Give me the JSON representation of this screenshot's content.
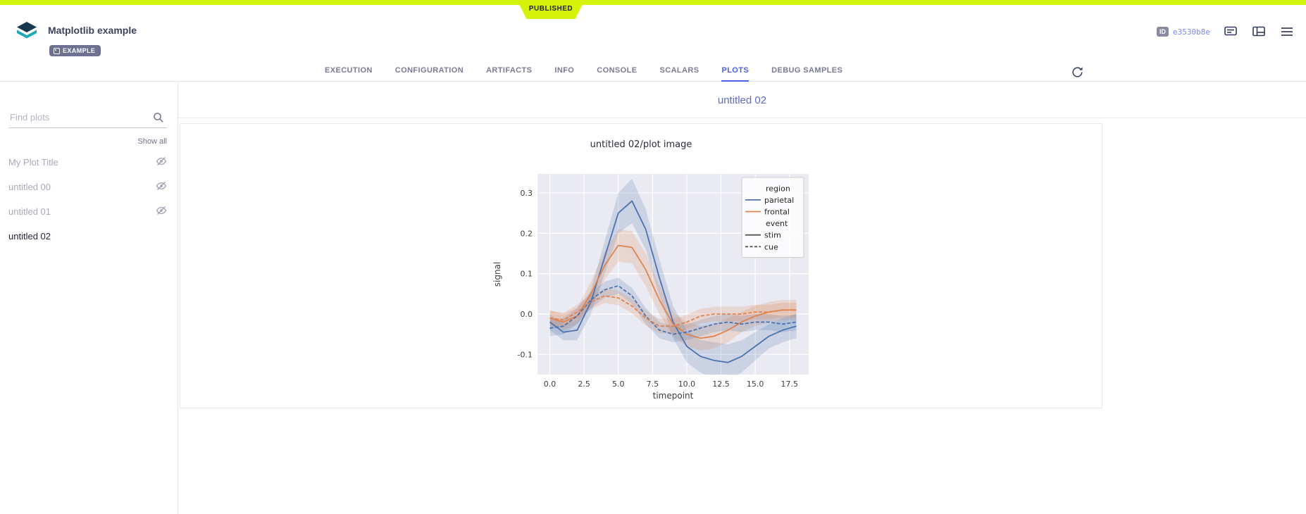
{
  "published_banner": {
    "label": "PUBLISHED"
  },
  "theme": {
    "published_color": "#d3f30a",
    "accent_color": "#4a61e4"
  },
  "header": {
    "title": "Matplotlib example",
    "badge": "EXAMPLE",
    "id_label": "ID",
    "id_value": "e3530b8e"
  },
  "tabs": {
    "active": "PLOTS",
    "items": [
      {
        "label": "EXECUTION"
      },
      {
        "label": "CONFIGURATION"
      },
      {
        "label": "ARTIFACTS"
      },
      {
        "label": "INFO"
      },
      {
        "label": "CONSOLE"
      },
      {
        "label": "SCALARS"
      },
      {
        "label": "PLOTS"
      },
      {
        "label": "DEBUG SAMPLES"
      }
    ]
  },
  "sidebar": {
    "search_placeholder": "Find plots",
    "show_all": "Show all",
    "items": [
      {
        "label": "My Plot Title",
        "hidden": true
      },
      {
        "label": "untitled 00",
        "hidden": true
      },
      {
        "label": "untitled 01",
        "hidden": true
      },
      {
        "label": "untitled 02",
        "hidden": false,
        "selected": true
      }
    ]
  },
  "main": {
    "section_title": "untitled 02",
    "plot_title": "untitled 02/plot image"
  },
  "chart_data": {
    "type": "line",
    "title": "untitled 02/plot image",
    "xlabel": "timepoint",
    "ylabel": "signal",
    "background": "#eaeaf2",
    "grid": true,
    "xlim": [
      -0.9,
      18.9
    ],
    "ylim": [
      -0.15,
      0.347
    ],
    "xticks": [
      0.0,
      2.5,
      5.0,
      7.5,
      10.0,
      12.5,
      15.0,
      17.5
    ],
    "yticks": [
      -0.1,
      0.0,
      0.1,
      0.2,
      0.3
    ],
    "x": [
      0,
      1,
      2,
      3,
      4,
      5,
      6,
      7,
      8,
      9,
      10,
      11,
      12,
      13,
      14,
      15,
      16,
      17,
      18
    ],
    "series": [
      {
        "name": "parietal stim",
        "color": "#4c72b0",
        "dash": false,
        "values": [
          -0.02,
          -0.045,
          -0.04,
          0.03,
          0.14,
          0.25,
          0.28,
          0.21,
          0.09,
          -0.02,
          -0.08,
          -0.105,
          -0.115,
          -0.12,
          -0.105,
          -0.08,
          -0.055,
          -0.04,
          -0.03
        ],
        "band": [
          0.02,
          0.02,
          0.025,
          0.03,
          0.04,
          0.05,
          0.055,
          0.05,
          0.045,
          0.04,
          0.04,
          0.04,
          0.045,
          0.045,
          0.04,
          0.035,
          0.03,
          0.03,
          0.03
        ]
      },
      {
        "name": "frontal stim",
        "color": "#dd8452",
        "dash": false,
        "values": [
          -0.01,
          -0.02,
          -0.005,
          0.05,
          0.12,
          0.17,
          0.165,
          0.11,
          0.035,
          -0.025,
          -0.05,
          -0.06,
          -0.055,
          -0.04,
          -0.02,
          -0.005,
          0.005,
          0.01,
          0.01
        ],
        "band": [
          0.02,
          0.02,
          0.02,
          0.03,
          0.035,
          0.04,
          0.04,
          0.04,
          0.035,
          0.03,
          0.03,
          0.03,
          0.03,
          0.03,
          0.025,
          0.025,
          0.025,
          0.025,
          0.025
        ]
      },
      {
        "name": "parietal cue",
        "color": "#4c72b0",
        "dash": true,
        "values": [
          -0.035,
          -0.03,
          -0.005,
          0.035,
          0.06,
          0.07,
          0.045,
          -0.005,
          -0.04,
          -0.05,
          -0.045,
          -0.035,
          -0.025,
          -0.02,
          -0.025,
          -0.02,
          -0.02,
          -0.025,
          -0.02
        ],
        "band": [
          0.02,
          0.02,
          0.02,
          0.02,
          0.02,
          0.02,
          0.02,
          0.02,
          0.02,
          0.02,
          0.02,
          0.02,
          0.02,
          0.02,
          0.02,
          0.02,
          0.02,
          0.02,
          0.02
        ]
      },
      {
        "name": "frontal cue",
        "color": "#dd8452",
        "dash": true,
        "values": [
          -0.01,
          -0.015,
          0.005,
          0.03,
          0.045,
          0.04,
          0.02,
          -0.01,
          -0.03,
          -0.03,
          -0.02,
          -0.005,
          0.0,
          0.0,
          0.0,
          0.005,
          0.005,
          0.01,
          0.01
        ],
        "band": [
          0.018,
          0.018,
          0.018,
          0.018,
          0.018,
          0.018,
          0.018,
          0.018,
          0.018,
          0.018,
          0.018,
          0.018,
          0.018,
          0.018,
          0.018,
          0.018,
          0.018,
          0.018,
          0.018
        ]
      }
    ],
    "legend": {
      "position": "upper right",
      "groups": [
        {
          "title": "region",
          "entries": [
            {
              "label": "parietal",
              "color": "#4c72b0",
              "dash": false
            },
            {
              "label": "frontal",
              "color": "#dd8452",
              "dash": false
            }
          ]
        },
        {
          "title": "event",
          "entries": [
            {
              "label": "stim",
              "color": "#555555",
              "dash": false
            },
            {
              "label": "cue",
              "color": "#555555",
              "dash": true
            }
          ]
        }
      ]
    }
  }
}
